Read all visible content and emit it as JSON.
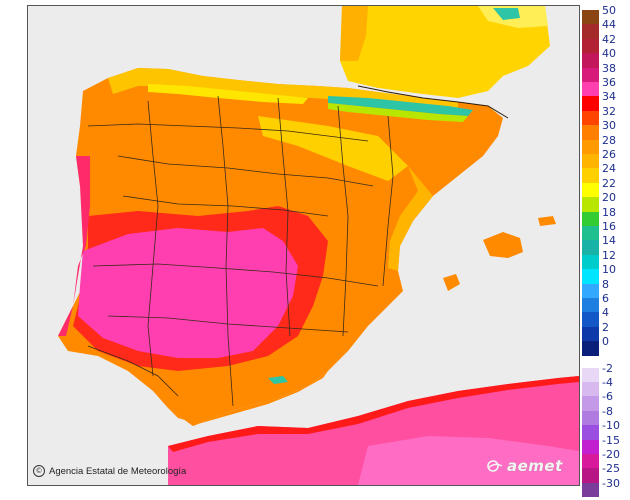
{
  "credit": {
    "text": "Agencia Estatal de Meteorología",
    "copyright_symbol": "©"
  },
  "logo": {
    "text": "aemet"
  },
  "colors": {
    "sea": "#ececec",
    "land_hot": "#ff3fb0",
    "land_warm": "#ff6b00",
    "land_mild": "#ffb000",
    "land_cool": "#ffe600",
    "mountain_cold": "#2ec4a6",
    "border": "#3a2a1a"
  },
  "legend": {
    "positive": [
      {
        "label": "50",
        "color": "#8b4513"
      },
      {
        "label": "44",
        "color": "#a52a2a"
      },
      {
        "label": "42",
        "color": "#b22234"
      },
      {
        "label": "40",
        "color": "#c2185b"
      },
      {
        "label": "38",
        "color": "#d81b7a"
      },
      {
        "label": "36",
        "color": "#ff3fb0"
      },
      {
        "label": "34",
        "color": "#ff0000"
      },
      {
        "label": "32",
        "color": "#ff4500"
      },
      {
        "label": "30",
        "color": "#ff7f00"
      },
      {
        "label": "28",
        "color": "#ff9a00"
      },
      {
        "label": "26",
        "color": "#ffb400"
      },
      {
        "label": "24",
        "color": "#ffd000"
      },
      {
        "label": "22",
        "color": "#ffff00"
      },
      {
        "label": "20",
        "color": "#b8e600"
      },
      {
        "label": "18",
        "color": "#33cc33"
      },
      {
        "label": "16",
        "color": "#1fbf8f"
      },
      {
        "label": "14",
        "color": "#19b2a6"
      },
      {
        "label": "12",
        "color": "#00cccc"
      },
      {
        "label": "10",
        "color": "#00e5ff"
      },
      {
        "label": "8",
        "color": "#33a8ff"
      },
      {
        "label": "6",
        "color": "#1e7fe0"
      },
      {
        "label": "4",
        "color": "#1458c8"
      },
      {
        "label": "2",
        "color": "#0d3aa8"
      },
      {
        "label": "0",
        "color": "#0a1f7a"
      }
    ],
    "negative": [
      {
        "label": "-2",
        "color": "#e8d8f5"
      },
      {
        "label": "-4",
        "color": "#d7b8ef"
      },
      {
        "label": "-6",
        "color": "#c49ae8"
      },
      {
        "label": "-8",
        "color": "#b07be0"
      },
      {
        "label": "-10",
        "color": "#9a4fe0"
      },
      {
        "label": "-15",
        "color": "#c21fd0"
      },
      {
        "label": "-20",
        "color": "#d8199c"
      },
      {
        "label": "-25",
        "color": "#b81585"
      },
      {
        "label": "-30",
        "color": "#7a3d9a"
      }
    ]
  }
}
